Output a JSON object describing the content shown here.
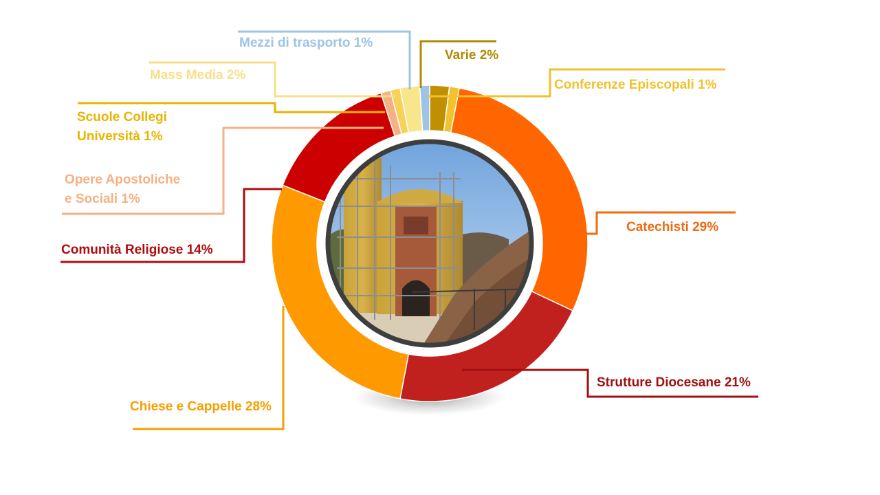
{
  "chart_data": {
    "type": "pie",
    "variant": "donut",
    "title": "",
    "center_image": "photo of a yellow colonial church facade under scaffolding",
    "slices": [
      {
        "label": "Varie 2%",
        "value": 2,
        "color": "#C09000"
      },
      {
        "label": "Conferenze Episcopali 1%",
        "value": 1,
        "color": "#F2C12E"
      },
      {
        "label": "Catechisti 29%",
        "value": 29,
        "color": "#FF6600"
      },
      {
        "label": "Strutture Diocesane 21%",
        "value": 21,
        "color": "#C0201E"
      },
      {
        "label": "Chiese e Cappelle 28%",
        "value": 28,
        "color": "#FF9900"
      },
      {
        "label": "Comunità Religiose 14%",
        "value": 14,
        "color": "#CC0000"
      },
      {
        "label": "Opere Apostoliche e Sociali 1%",
        "value": 1,
        "color": "#F4B183"
      },
      {
        "label": "Scuole Collegi Università 1%",
        "value": 1,
        "color": "#F7D158"
      },
      {
        "label": "Mass Media 2%",
        "value": 2,
        "color": "#F9E58A"
      },
      {
        "label": "Mezzi di trasporto 1%",
        "value": 1,
        "color": "#9DC3E6"
      }
    ],
    "label_lines": [
      {
        "text": "Varie 2%",
        "lines": [
          "Varie 2%"
        ],
        "color": "#B08A00"
      },
      {
        "text": "Conferenze Episcopali 1%",
        "lines": [
          "Conferenze Episcopali 1%"
        ],
        "color": "#F2C12E"
      },
      {
        "text": "Catechisti 29%",
        "lines": [
          "Catechisti 29%"
        ],
        "color": "#F06A10"
      },
      {
        "text": "Strutture Diocesane 21%",
        "lines": [
          "Strutture Diocesane 21%"
        ],
        "color": "#A01010"
      },
      {
        "text": "Chiese e Cappelle 28%",
        "lines": [
          "Chiese e Cappelle 28%"
        ],
        "color": "#F5A000"
      },
      {
        "text": "Comunità Religiose 14%",
        "lines": [
          "Comunità Religiose 14%"
        ],
        "color": "#B00C0C"
      },
      {
        "text": "Opere Apostoliche e Sociali 1%",
        "lines": [
          "Opere Apostoliche",
          "e Sociali 1%"
        ],
        "color": "#F4B183"
      },
      {
        "text": "Scuole Collegi Università 1%",
        "lines": [
          "Scuole Collegi",
          "Università 1%"
        ],
        "color": "#E8B400"
      },
      {
        "text": "Mass Media 2%",
        "lines": [
          "Mass Media 2%"
        ],
        "color": "#F7E08A"
      },
      {
        "text": "Mezzi di trasporto 1%",
        "lines": [
          "Mezzi di trasporto 1%"
        ],
        "color": "#9DC3E6"
      }
    ]
  }
}
